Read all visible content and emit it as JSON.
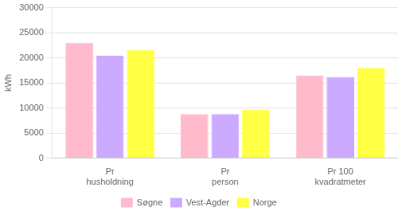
{
  "chart_data": {
    "type": "bar",
    "categories": [
      "Pr\nhusholdning",
      "Pr\nperson",
      "Pr 100\nkvadratmeter"
    ],
    "series": [
      {
        "name": "Søgne",
        "color": "#ffbbcc",
        "values": [
          23000,
          8800,
          16500
        ]
      },
      {
        "name": "Vest-Agder",
        "color": "#ccaaff",
        "values": [
          20400,
          8800,
          16200
        ]
      },
      {
        "name": "Norge",
        "color": "#ffff44",
        "values": [
          21600,
          9700,
          18000
        ]
      }
    ],
    "ylabel": "kWh",
    "ylim": [
      0,
      30000
    ],
    "yticks": [
      0,
      5000,
      10000,
      15000,
      20000,
      25000,
      30000
    ],
    "grid": true,
    "legend": "bottom"
  }
}
